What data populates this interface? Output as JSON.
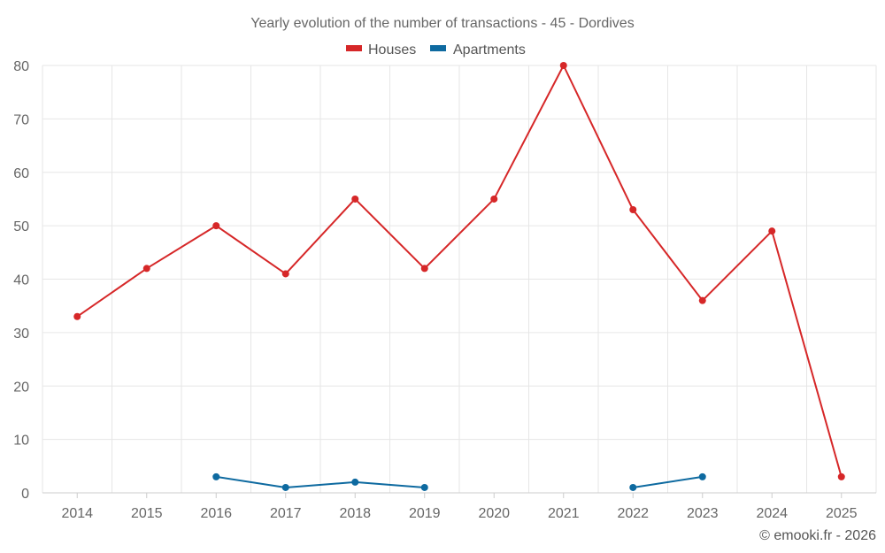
{
  "chart_data": {
    "type": "line",
    "title": "Yearly evolution of the number of transactions - 45 - Dordives",
    "categories": [
      "2014",
      "2015",
      "2016",
      "2017",
      "2018",
      "2019",
      "2020",
      "2021",
      "2022",
      "2023",
      "2024",
      "2025"
    ],
    "ylim": [
      0,
      80
    ],
    "yticks": [
      0,
      10,
      20,
      30,
      40,
      50,
      60,
      70,
      80
    ],
    "grid": true,
    "legend_position": "top-center",
    "series": [
      {
        "name": "Houses",
        "color": "#d62728",
        "values": [
          33,
          42,
          50,
          41,
          55,
          42,
          55,
          80,
          53,
          36,
          49,
          3
        ]
      },
      {
        "name": "Apartments",
        "color": "#0e6aa0",
        "values": [
          null,
          null,
          3,
          1,
          2,
          1,
          null,
          null,
          1,
          3,
          null,
          null
        ]
      }
    ]
  },
  "credit": "© emooki.fr - 2026"
}
